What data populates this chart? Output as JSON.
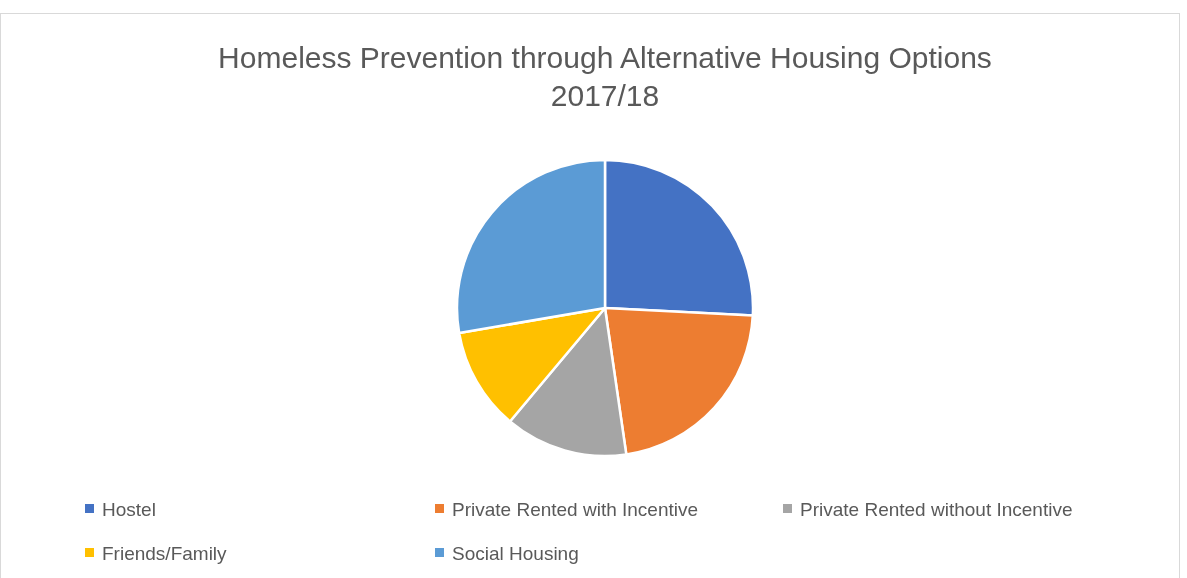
{
  "chart_data": {
    "type": "pie",
    "title": "Homeless Prevention through Alternative Housing Options 2017/18",
    "categories": [
      "Hostel",
      "Private Rented with Incentive",
      "Private Rented without Incentive",
      "Friends/Family",
      "Social Housing"
    ],
    "values": [
      25.8,
      21.9,
      13.4,
      11.2,
      27.7
    ],
    "colors": [
      "#4472c4",
      "#ed7d31",
      "#a5a5a5",
      "#ffc000",
      "#5b9bd5"
    ],
    "legend": "bottom"
  }
}
